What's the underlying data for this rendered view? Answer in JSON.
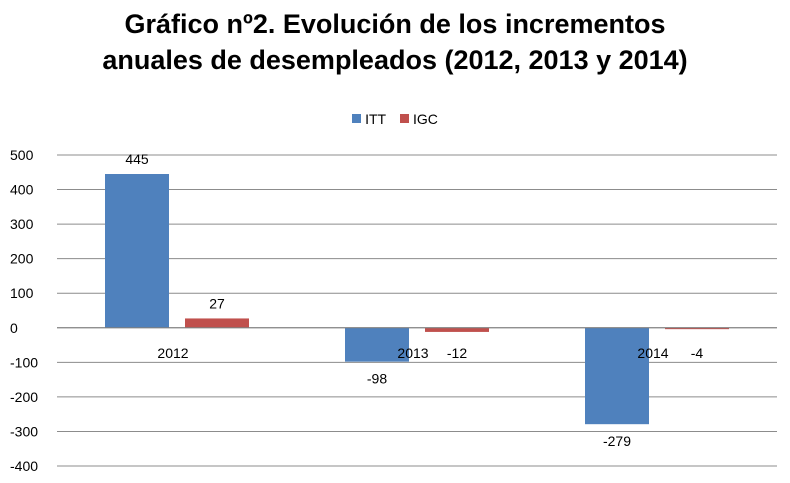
{
  "chart_data": {
    "type": "bar",
    "title_line1": "Gráfico nº2. Evolución de los incrementos",
    "title_line2": "anuales de desempleados (2012, 2013 y 2014)",
    "categories": [
      "2012",
      "2013",
      "2014"
    ],
    "series": [
      {
        "name": "ITT",
        "color": "#4F81BD",
        "values": [
          445,
          -98,
          -279
        ],
        "labels": [
          "445",
          "-98",
          "-279"
        ]
      },
      {
        "name": "IGC",
        "color": "#C0504D",
        "values": [
          27,
          -12,
          -4
        ],
        "labels": [
          "27",
          "-12",
          "-4"
        ]
      }
    ],
    "ylim": [
      -400,
      500
    ],
    "yticks": [
      500,
      400,
      300,
      200,
      100,
      0,
      -100,
      -200,
      -300,
      -400
    ],
    "ytick_labels": [
      "500",
      "400",
      "300",
      "200",
      "100",
      "0",
      "-100",
      "-200",
      "-300",
      "-400"
    ],
    "grid": true,
    "legend_position": "top-center",
    "xlabel": "",
    "ylabel": ""
  }
}
